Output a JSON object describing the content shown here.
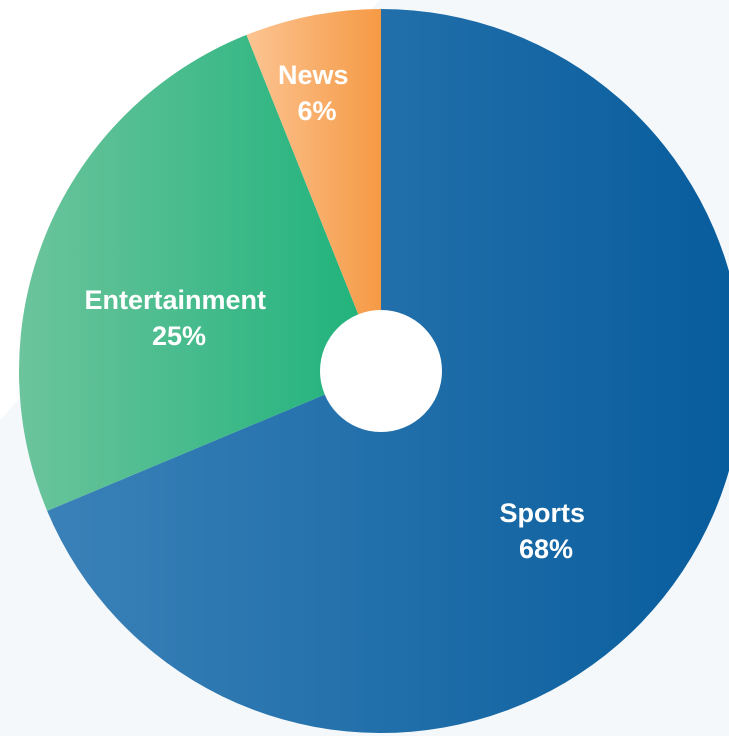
{
  "chart_data": {
    "type": "pie",
    "title": "",
    "center_hole": true,
    "slices": [
      {
        "label": "Sports",
        "value": 68,
        "value_text": "68%",
        "color_start": "#3a81b8",
        "color_end": "#075c9c"
      },
      {
        "label": "Entertainment",
        "value": 25,
        "value_text": "25%",
        "color_start": "#6cc49c",
        "color_end": "#1db27a"
      },
      {
        "label": "News",
        "value": 6,
        "value_text": "6%",
        "color_start": "#fcc492",
        "color_end": "#f59a45"
      }
    ]
  }
}
